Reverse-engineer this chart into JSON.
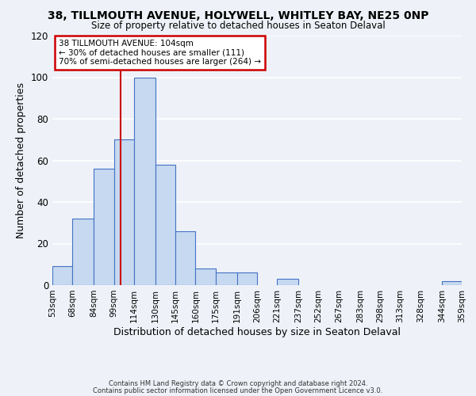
{
  "title": "38, TILLMOUTH AVENUE, HOLYWELL, WHITLEY BAY, NE25 0NP",
  "subtitle": "Size of property relative to detached houses in Seaton Delaval",
  "xlabel": "Distribution of detached houses by size in Seaton Delaval",
  "ylabel": "Number of detached properties",
  "bar_edges": [
    53,
    68,
    84,
    99,
    114,
    130,
    145,
    160,
    175,
    191,
    206,
    221,
    237,
    252,
    267,
    283,
    298,
    313,
    328,
    344,
    359
  ],
  "bar_heights": [
    9,
    32,
    56,
    70,
    100,
    58,
    26,
    8,
    6,
    6,
    0,
    3,
    0,
    0,
    0,
    0,
    0,
    0,
    0,
    2
  ],
  "bar_color": "#c6d9f0",
  "bar_edge_color": "#4472c4",
  "ylim": [
    0,
    120
  ],
  "yticks": [
    0,
    20,
    40,
    60,
    80,
    100,
    120
  ],
  "property_line_x": 104,
  "property_line_color": "#cc0000",
  "annotation_title": "38 TILLMOUTH AVENUE: 104sqm",
  "annotation_line1": "← 30% of detached houses are smaller (111)",
  "annotation_line2": "70% of semi-detached houses are larger (264) →",
  "footer1": "Contains HM Land Registry data © Crown copyright and database right 2024.",
  "footer2": "Contains public sector information licensed under the Open Government Licence v3.0.",
  "background_color": "#eef2f8",
  "tick_labels": [
    "53sqm",
    "68sqm",
    "84sqm",
    "99sqm",
    "114sqm",
    "130sqm",
    "145sqm",
    "160sqm",
    "175sqm",
    "191sqm",
    "206sqm",
    "221sqm",
    "237sqm",
    "252sqm",
    "267sqm",
    "283sqm",
    "298sqm",
    "313sqm",
    "328sqm",
    "344sqm",
    "359sqm"
  ]
}
